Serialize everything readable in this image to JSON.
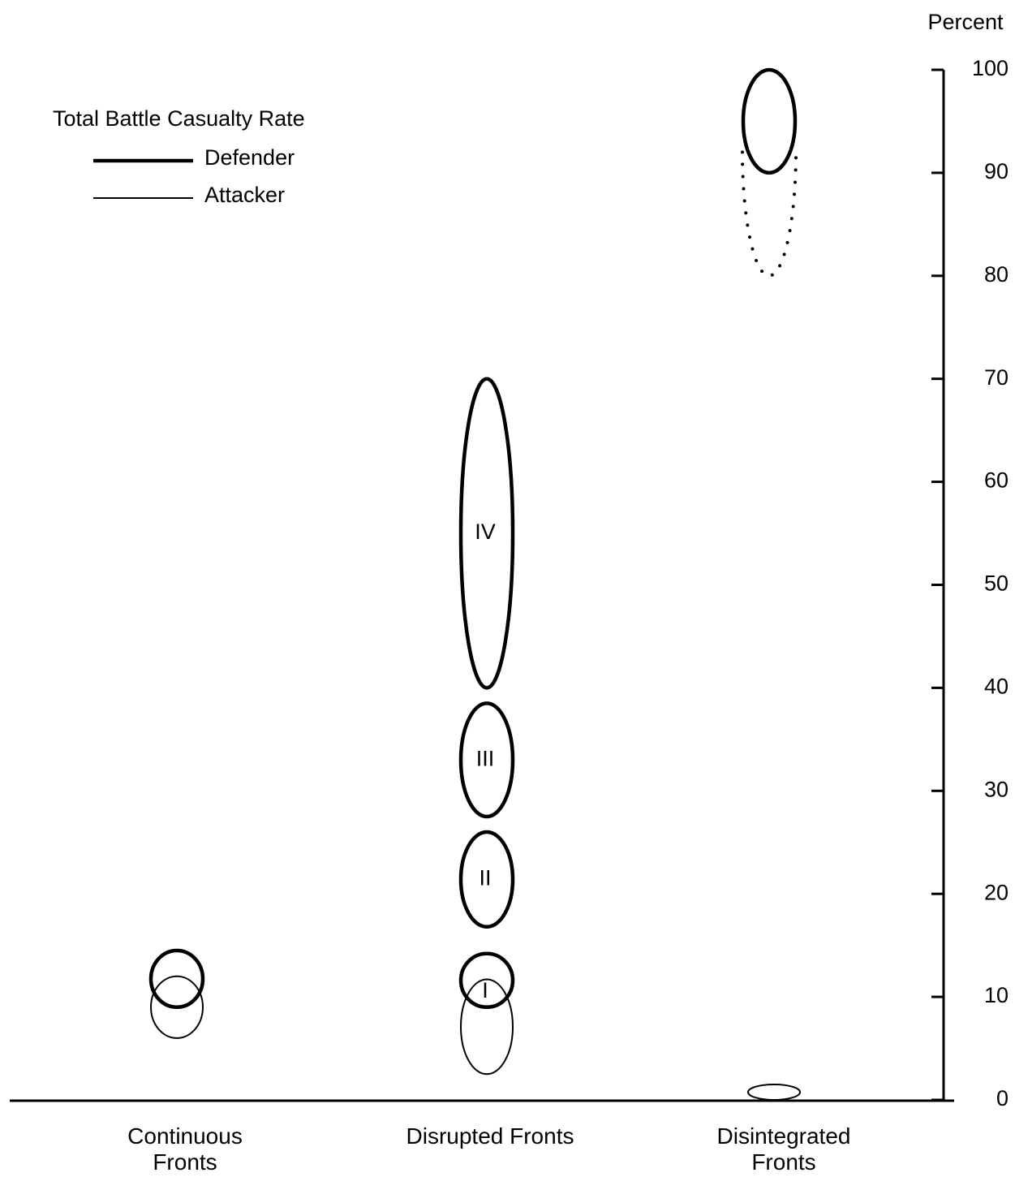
{
  "chart_data": {
    "type": "range-ellipse",
    "legend_title": "Total Battle Casualty Rate",
    "y_label": "Percent",
    "categories": [
      "Continuous Fronts",
      "Disrupted Fronts",
      "Disintegrated Fronts"
    ],
    "ylim": [
      0,
      100
    ],
    "yticks": [
      0,
      10,
      20,
      30,
      40,
      50,
      60,
      70,
      80,
      90,
      100
    ],
    "series": [
      {
        "name": "Defender",
        "color": "#000000",
        "line_width": 4.5,
        "values": [
          [
            [
              9,
              14.5
            ]
          ],
          [
            [
              9,
              14.2
            ],
            [
              16.8,
              26
            ],
            [
              27.5,
              38.5
            ],
            [
              40,
              70
            ]
          ],
          [
            [
              90,
              100
            ]
          ]
        ],
        "range_labels": [
          [
            null
          ],
          [
            "I",
            "II",
            "III",
            "IV"
          ],
          [
            null
          ]
        ],
        "dotted_extension": [
          [],
          [],
          [
            [
              80,
              92
            ]
          ]
        ]
      },
      {
        "name": "Attacker",
        "color": "#000000",
        "line_width": 2,
        "values": [
          [
            [
              6,
              12
            ]
          ],
          [
            [
              2.5,
              11.7
            ]
          ],
          [
            [
              0,
              1.5
            ]
          ]
        ]
      }
    ]
  }
}
